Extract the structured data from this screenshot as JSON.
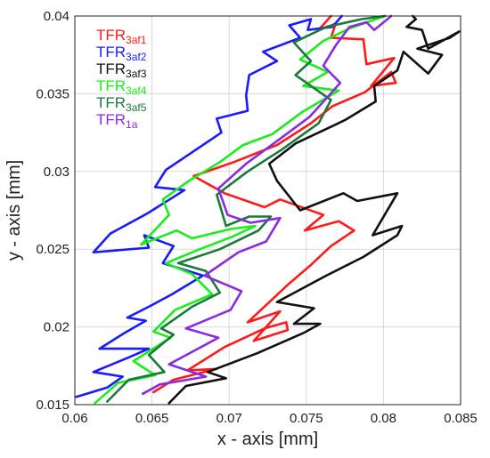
{
  "chart_data": {
    "type": "line",
    "xlabel": "x - axis [mm]",
    "ylabel": "y - axis [mm]",
    "xlim": [
      0.06,
      0.085
    ],
    "ylim": [
      0.015,
      0.04
    ],
    "xticks": [
      "0.06",
      "0.065",
      "0.07",
      "0.075",
      "0.08",
      "0.085"
    ],
    "yticks": [
      "0.015",
      "0.02",
      "0.025",
      "0.03",
      "0.035",
      "0.04"
    ],
    "grid": true,
    "legend_position": "top-left",
    "series": [
      {
        "name": "TFR",
        "subscript": "3af1",
        "color": "#ff1a1a",
        "x": [
          0.0651,
          0.0664,
          0.0692,
          0.0673,
          0.0697,
          0.0723,
          0.0737,
          0.0738,
          0.0716,
          0.0733,
          0.0712,
          0.0739,
          0.0752,
          0.0766,
          0.0781,
          0.0771,
          0.0749,
          0.0761,
          0.0733,
          0.0723,
          0.0697,
          0.0677,
          0.0703,
          0.0731,
          0.0753,
          0.0767,
          0.0788,
          0.0805,
          0.0808,
          0.0792,
          0.0807,
          0.0789,
          0.0787,
          0.0766,
          0.0769,
          0.0758,
          0.0766
        ],
        "y": [
          0.0158,
          0.0166,
          0.0173,
          0.0172,
          0.0187,
          0.0199,
          0.0203,
          0.0198,
          0.0191,
          0.021,
          0.0203,
          0.0228,
          0.0239,
          0.0252,
          0.0262,
          0.0268,
          0.0262,
          0.0272,
          0.0282,
          0.0277,
          0.0286,
          0.0297,
          0.0306,
          0.0317,
          0.0331,
          0.0342,
          0.0351,
          0.0364,
          0.0357,
          0.0355,
          0.0373,
          0.0369,
          0.0385,
          0.0386,
          0.0395,
          0.0391,
          0.04
        ]
      },
      {
        "name": "TFR",
        "subscript": "3af2",
        "color": "#1a1aff",
        "x": [
          0.0601,
          0.0621,
          0.0631,
          0.0612,
          0.0634,
          0.0648,
          0.0616,
          0.0632,
          0.0646,
          0.0634,
          0.0648,
          0.0663,
          0.0683,
          0.0657,
          0.0664,
          0.0645,
          0.0648,
          0.0612,
          0.0623,
          0.0647,
          0.0671,
          0.0652,
          0.0659,
          0.0674,
          0.0695,
          0.0692,
          0.0712,
          0.0711,
          0.0713,
          0.0731,
          0.0722,
          0.0746,
          0.0739,
          0.0753,
          0.0751,
          0.0767,
          0.0773
        ],
        "y": [
          0.0155,
          0.0161,
          0.0168,
          0.0171,
          0.018,
          0.0186,
          0.0186,
          0.0196,
          0.0204,
          0.0206,
          0.0213,
          0.0221,
          0.0233,
          0.0241,
          0.0252,
          0.0259,
          0.0251,
          0.0248,
          0.026,
          0.0273,
          0.0288,
          0.029,
          0.0301,
          0.0311,
          0.0325,
          0.0334,
          0.0339,
          0.0349,
          0.0362,
          0.0371,
          0.0377,
          0.0386,
          0.0394,
          0.0398,
          0.0391,
          0.0393,
          0.04
        ]
      },
      {
        "name": "TFR",
        "subscript": "3af3",
        "color": "#111111",
        "x": [
          0.0661,
          0.0672,
          0.0698,
          0.0686,
          0.0718,
          0.0748,
          0.0759,
          0.0742,
          0.0755,
          0.0731,
          0.0763,
          0.0787,
          0.0809,
          0.0812,
          0.0793,
          0.0809,
          0.0783,
          0.0774,
          0.0746,
          0.0731,
          0.0726,
          0.0743,
          0.0775,
          0.0795,
          0.0794,
          0.0809,
          0.0813,
          0.0829,
          0.0838,
          0.0822,
          0.0843,
          0.0849,
          0.0829,
          0.0825,
          0.0815,
          0.0821,
          0.0819
        ],
        "y": [
          0.0151,
          0.0162,
          0.0167,
          0.0171,
          0.0183,
          0.0196,
          0.0202,
          0.0202,
          0.0212,
          0.0216,
          0.0233,
          0.0245,
          0.0259,
          0.0265,
          0.0259,
          0.0286,
          0.0281,
          0.0286,
          0.0275,
          0.0294,
          0.0305,
          0.0318,
          0.0333,
          0.0345,
          0.0355,
          0.0365,
          0.0377,
          0.0363,
          0.0375,
          0.0379,
          0.0386,
          0.039,
          0.0379,
          0.0391,
          0.0393,
          0.0398,
          0.04
        ]
      },
      {
        "name": "TFR",
        "subscript": "3af4",
        "color": "#1aee1a",
        "x": [
          0.0613,
          0.0628,
          0.0652,
          0.0638,
          0.0662,
          0.0651,
          0.0665,
          0.0689,
          0.0676,
          0.0659,
          0.0681,
          0.0702,
          0.0717,
          0.0701,
          0.0676,
          0.0666,
          0.0643,
          0.0661,
          0.0657,
          0.0674,
          0.0694,
          0.0709,
          0.0728,
          0.0747,
          0.0771,
          0.0748,
          0.0764,
          0.0746,
          0.0761,
          0.0778,
          0.0801
        ],
        "y": [
          0.0151,
          0.0164,
          0.0169,
          0.0178,
          0.0193,
          0.0197,
          0.0211,
          0.0221,
          0.0234,
          0.0241,
          0.025,
          0.0258,
          0.0265,
          0.0263,
          0.0257,
          0.0262,
          0.0253,
          0.0272,
          0.0282,
          0.0294,
          0.0306,
          0.0317,
          0.0324,
          0.0338,
          0.0352,
          0.0355,
          0.0364,
          0.0372,
          0.0384,
          0.0392,
          0.04
        ]
      },
      {
        "name": "TFR",
        "subscript": "3af5",
        "color": "#1a7a3a",
        "x": [
          0.0621,
          0.0635,
          0.0658,
          0.0648,
          0.0664,
          0.0656,
          0.0676,
          0.0694,
          0.0685,
          0.0667,
          0.0694,
          0.0719,
          0.0727,
          0.0713,
          0.0698,
          0.0692,
          0.0712,
          0.0734,
          0.0758,
          0.0766,
          0.0743,
          0.0753,
          0.0742,
          0.0763,
          0.0786,
          0.0801
        ],
        "y": [
          0.0152,
          0.0166,
          0.0171,
          0.0182,
          0.0195,
          0.0199,
          0.0213,
          0.0222,
          0.0236,
          0.0241,
          0.025,
          0.0262,
          0.0271,
          0.0271,
          0.0265,
          0.0285,
          0.03,
          0.0314,
          0.0331,
          0.0346,
          0.0362,
          0.0371,
          0.0383,
          0.0393,
          0.0398,
          0.04
        ]
      },
      {
        "name": "TFR",
        "subscript": "1a",
        "color": "#8a2be2",
        "x": [
          0.0644,
          0.0655,
          0.0685,
          0.0661,
          0.0693,
          0.0672,
          0.0701,
          0.0708,
          0.0684,
          0.0706,
          0.0724,
          0.0733,
          0.0714,
          0.0699,
          0.0693,
          0.0711,
          0.0733,
          0.0752,
          0.0763,
          0.0772,
          0.0761,
          0.0769,
          0.0778,
          0.0789,
          0.0794,
          0.0805
        ],
        "y": [
          0.0157,
          0.0163,
          0.0168,
          0.0176,
          0.0193,
          0.0199,
          0.0211,
          0.0223,
          0.0233,
          0.0248,
          0.0255,
          0.027,
          0.0267,
          0.0272,
          0.0289,
          0.0305,
          0.0321,
          0.0335,
          0.0347,
          0.0357,
          0.0368,
          0.0381,
          0.0393,
          0.0396,
          0.0391,
          0.04
        ]
      }
    ]
  }
}
